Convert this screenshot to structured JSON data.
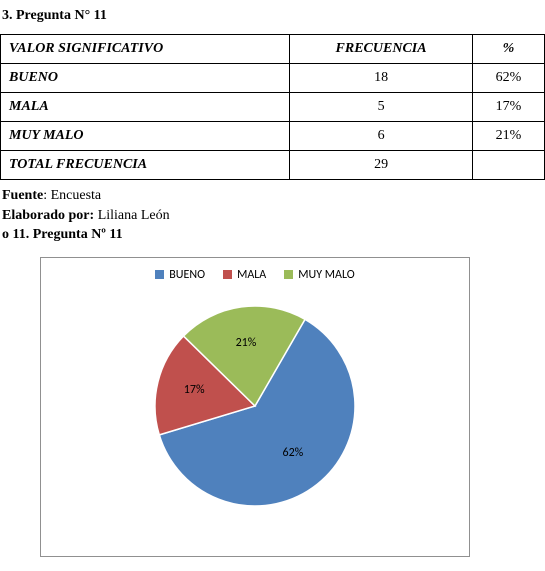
{
  "title": "3. Pregunta N° 11",
  "table": {
    "headers": {
      "col1": "VALOR SIGNIFICATIVO",
      "col2": "FRECUENCIA",
      "col3": "%"
    },
    "rows": [
      {
        "label": "BUENO",
        "freq": "18",
        "pct": "62%"
      },
      {
        "label": "MALA",
        "freq": "5",
        "pct": "17%"
      },
      {
        "label": "MUY MALO",
        "freq": "6",
        "pct": "21%"
      }
    ],
    "total": {
      "label": "TOTAL FRECUENCIA",
      "freq": "29",
      "pct": ""
    }
  },
  "source": {
    "fuente_label": "Fuente",
    "fuente_value": ": Encuesta",
    "elaborado_label": "Elaborado por:",
    "elaborado_value": " Liliana León",
    "subtitle": "o 11. Pregunta Nº 11"
  },
  "chart": {
    "type": "pie",
    "background_color": "#ffffff",
    "border_color": "#909090",
    "legend_fontsize": 12,
    "label_fontsize": 12,
    "radius": 100,
    "slices": [
      {
        "name": "BUENO",
        "value": 62,
        "color": "#4f81bd",
        "label": "62%"
      },
      {
        "name": "MALA",
        "value": 17,
        "color": "#c0504d",
        "label": "17%"
      },
      {
        "name": "MUY MALO",
        "value": 21,
        "color": "#9bbb59",
        "label": "21%"
      }
    ]
  }
}
